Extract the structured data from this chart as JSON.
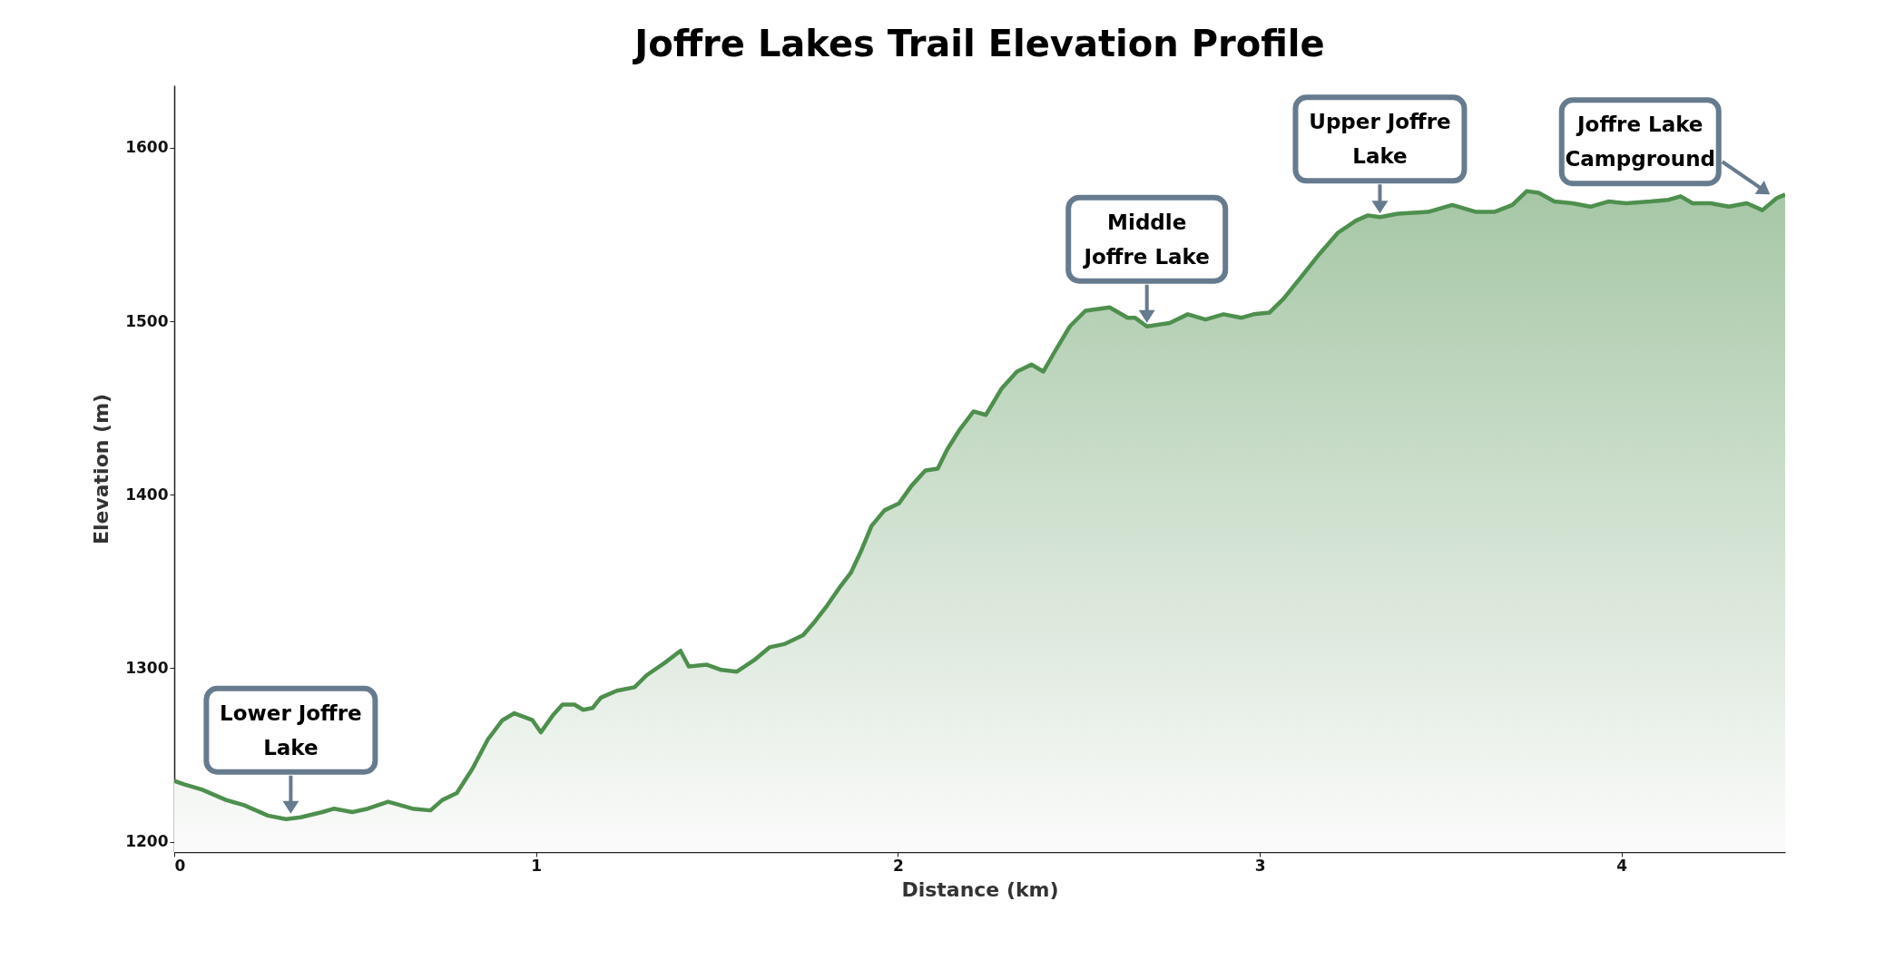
{
  "chart_data": {
    "type": "area",
    "title": "Joffre Lakes Trail Elevation Profile",
    "xlabel": "Distance (km)",
    "ylabel": "Elevation (m)",
    "xlim": [
      0,
      4.452
    ],
    "ylim": [
      1194,
      1636
    ],
    "xticks": [
      0,
      1,
      2,
      3,
      4
    ],
    "yticks": [
      1200,
      1300,
      1400,
      1500,
      1600
    ],
    "grid": false,
    "series": [
      {
        "color": "#4e8f4e",
        "x": [
          0,
          0.027,
          0.076,
          0.143,
          0.193,
          0.226,
          0.259,
          0.309,
          0.349,
          0.409,
          0.442,
          0.492,
          0.535,
          0.591,
          0.625,
          0.658,
          0.708,
          0.741,
          0.781,
          0.824,
          0.867,
          0.907,
          0.94,
          0.99,
          1.013,
          1.047,
          1.073,
          1.106,
          1.13,
          1.156,
          1.179,
          1.223,
          1.272,
          1.306,
          1.355,
          1.399,
          1.422,
          1.472,
          1.512,
          1.555,
          1.605,
          1.645,
          1.688,
          1.738,
          1.771,
          1.804,
          1.837,
          1.87,
          1.897,
          1.927,
          1.963,
          2.003,
          2.037,
          2.076,
          2.11,
          2.136,
          2.169,
          2.209,
          2.243,
          2.286,
          2.329,
          2.369,
          2.402,
          2.435,
          2.475,
          2.518,
          2.585,
          2.635,
          2.655,
          2.688,
          2.751,
          2.801,
          2.85,
          2.9,
          2.95,
          2.983,
          3.027,
          3.066,
          3.116,
          3.166,
          3.216,
          3.266,
          3.299,
          3.332,
          3.382,
          3.465,
          3.532,
          3.598,
          3.648,
          3.698,
          3.738,
          3.771,
          3.814,
          3.864,
          3.914,
          3.963,
          4.013,
          4.08,
          4.13,
          4.163,
          4.196,
          4.246,
          4.296,
          4.346,
          4.389,
          4.429,
          4.452
        ],
        "values": [
          1235,
          1233,
          1230,
          1224,
          1221,
          1218,
          1215,
          1213,
          1214,
          1217,
          1219,
          1217,
          1219,
          1223,
          1221,
          1219,
          1218,
          1224,
          1228,
          1242,
          1259,
          1270,
          1274,
          1270,
          1263,
          1273,
          1279,
          1279,
          1276,
          1277,
          1283,
          1287,
          1289,
          1296,
          1303,
          1310,
          1301,
          1302,
          1299,
          1298,
          1305,
          1312,
          1314,
          1319,
          1327,
          1336,
          1346,
          1355,
          1367,
          1382,
          1391,
          1395,
          1405,
          1414,
          1415,
          1426,
          1437,
          1448,
          1446,
          1461,
          1471,
          1475,
          1471,
          1483,
          1497,
          1506,
          1508,
          1502,
          1502,
          1497,
          1499,
          1504,
          1501,
          1504,
          1502,
          1504,
          1505,
          1513,
          1526,
          1539,
          1551,
          1558,
          1561,
          1560,
          1562,
          1563,
          1567,
          1563,
          1563,
          1567,
          1575,
          1574,
          1569,
          1568,
          1566,
          1569,
          1568,
          1569,
          1570,
          1572,
          1568,
          1568,
          1566,
          1568,
          1564,
          1571,
          1573
        ]
      }
    ],
    "annotations": [
      {
        "text": "Lower Joffre Lake",
        "x": 0.322,
        "y": 1214
      },
      {
        "text": "Middle Joffre Lake",
        "x": 2.688,
        "y": 1497
      },
      {
        "text": "Upper Joffre Lake",
        "x": 3.332,
        "y": 1560
      },
      {
        "text": "Joffre Lake Campground",
        "x": 4.41,
        "y": 1571
      }
    ]
  }
}
